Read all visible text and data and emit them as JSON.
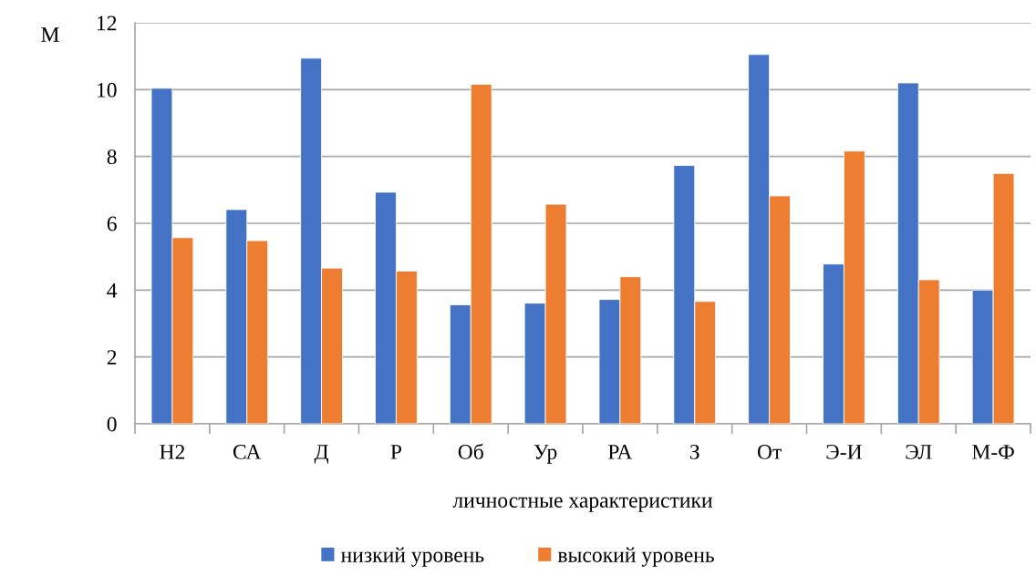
{
  "chart_data": {
    "type": "bar",
    "ylabel": "M",
    "xlabel": "личностные характеристики",
    "categories": [
      "Н2",
      "СА",
      "Д",
      "Р",
      "Об",
      "Ур",
      "РА",
      "З",
      "От",
      "Э-И",
      "ЭЛ",
      "М-Ф"
    ],
    "series": [
      {
        "name": "низкий уровень",
        "color": "#4472c4",
        "values": [
          10.04,
          6.41,
          10.94,
          6.93,
          3.56,
          3.61,
          3.72,
          7.73,
          11.05,
          4.78,
          10.2,
          4.0
        ]
      },
      {
        "name": "высокий уровень",
        "color": "#ed7d31",
        "values": [
          5.57,
          5.48,
          4.66,
          4.57,
          10.16,
          6.57,
          4.4,
          3.66,
          6.82,
          8.16,
          4.31,
          7.49
        ]
      }
    ],
    "ylim": [
      0,
      12
    ],
    "yticks": [
      0,
      2,
      4,
      6,
      8,
      10,
      12
    ],
    "grid": "y",
    "legend": "bottom"
  }
}
